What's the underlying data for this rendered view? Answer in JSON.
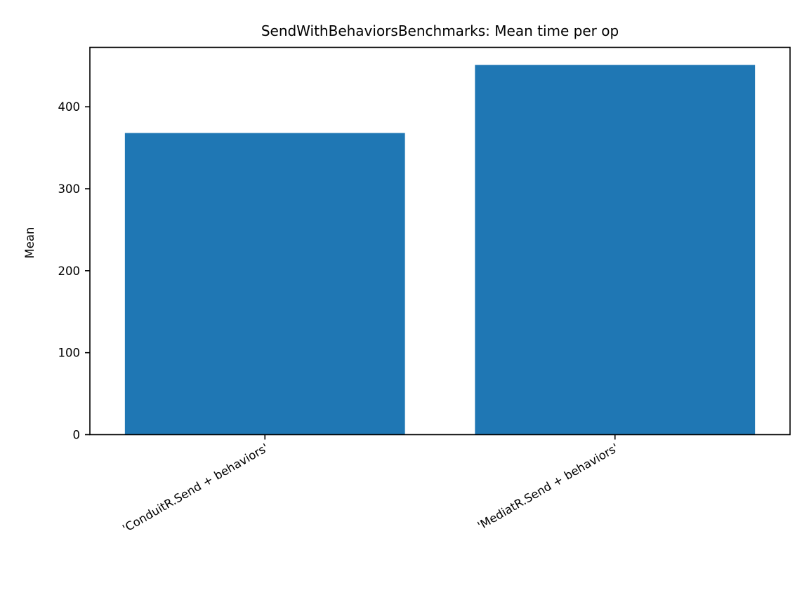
{
  "chart_data": {
    "type": "bar",
    "title": "SendWithBehaviorsBenchmarks: Mean time per op",
    "xlabel": "",
    "ylabel": "Mean",
    "categories": [
      "'ConduitR.Send + behaviors'",
      "'MediatR.Send + behaviors'"
    ],
    "values": [
      368,
      451
    ],
    "ylim": [
      0,
      472.5
    ],
    "yticks": [
      0,
      100,
      200,
      300,
      400
    ],
    "grid": false,
    "legend": "none",
    "colors": {
      "bar": "#1f77b4",
      "axis": "#000000",
      "background": "#ffffff"
    }
  }
}
